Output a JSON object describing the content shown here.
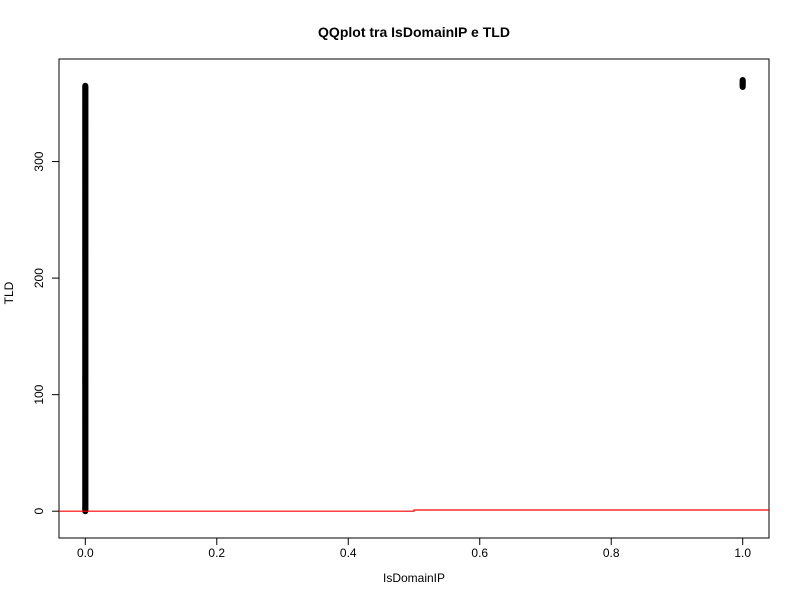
{
  "chart_data": {
    "type": "scatter",
    "title": "QQplot tra IsDomainIP e TLD",
    "xlabel": "IsDomainIP",
    "ylabel": "TLD",
    "xlim": [
      -0.04,
      1.04
    ],
    "ylim": [
      -23,
      388
    ],
    "x_ticks": [
      0,
      0.2,
      0.4,
      0.6,
      0.8,
      1
    ],
    "x_tick_labels": [
      "0.0",
      "0.2",
      "0.4",
      "0.6",
      "0.8",
      "1.0"
    ],
    "y_ticks": [
      0,
      100,
      200,
      300
    ],
    "y_tick_labels": [
      "0",
      "100",
      "200",
      "300"
    ],
    "grid": false,
    "legend": "none",
    "series": [
      {
        "x": 0,
        "y_range": [
          0,
          365
        ],
        "point_style": "open-circle",
        "color": "#000000"
      },
      {
        "x": 1,
        "y_range": [
          364,
          370
        ],
        "point_style": "open-circle",
        "color": "#000000"
      }
    ],
    "reference_line": {
      "type": "step",
      "color": "#ff0000",
      "points": [
        [
          -0.04,
          0
        ],
        [
          0.5,
          0
        ],
        [
          0.5,
          1
        ],
        [
          1.04,
          1
        ]
      ]
    }
  }
}
